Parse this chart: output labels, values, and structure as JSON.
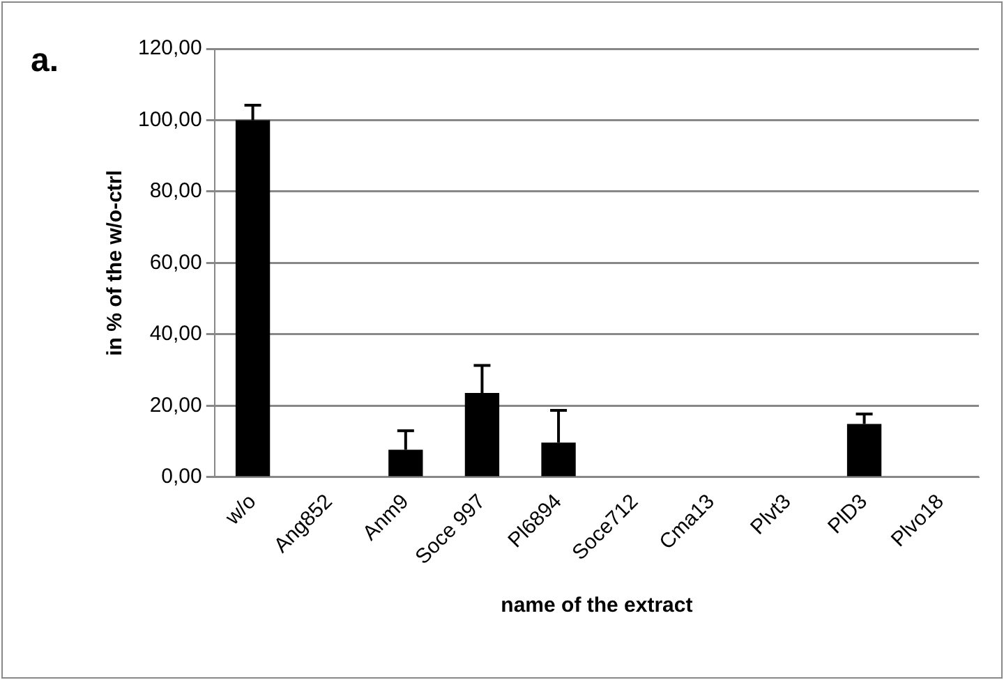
{
  "chart_data": {
    "type": "bar",
    "xlabel": "name of the extract",
    "ylabel": "in % of the w/o-ctrl",
    "annotations": [
      "a."
    ],
    "categories": [
      "w/o",
      "Ang852",
      "Anm9",
      "Soce 997",
      "Pl6894",
      "Soce712",
      "Cma13",
      "Plvt3",
      "PlD3",
      "Plvo18"
    ],
    "values": [
      100,
      0,
      7.7,
      23.6,
      9.7,
      0,
      0,
      0,
      14.9,
      0
    ],
    "errors": [
      [
        100,
        104.2
      ],
      null,
      [
        7.7,
        13
      ],
      [
        23.6,
        31.3
      ],
      [
        9.7,
        18.7
      ],
      null,
      null,
      null,
      [
        14.9,
        17.7
      ],
      null
    ],
    "color": "#000000",
    "ylim": [
      0,
      120
    ],
    "yticks": [
      {
        "value": 0,
        "label": "0,00"
      },
      {
        "value": 20,
        "label": "20,00"
      },
      {
        "value": 40,
        "label": "40,00"
      },
      {
        "value": 60,
        "label": "60,00"
      },
      {
        "value": 80,
        "label": "80,00"
      },
      {
        "value": 100,
        "label": "100,00"
      },
      {
        "value": 120,
        "label": "120,00"
      }
    ],
    "grid": "y",
    "legend": false
  }
}
